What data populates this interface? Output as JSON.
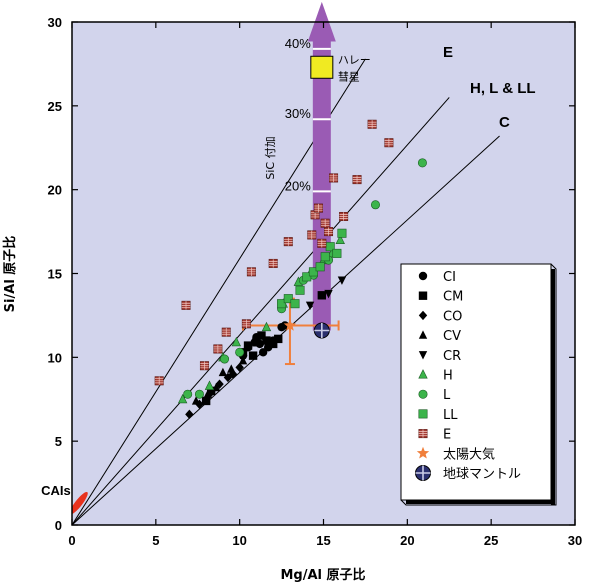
{
  "chart_data": {
    "type": "scatter",
    "xlabel": "Mg/Al 原子比",
    "ylabel": "Si/Al 原子比",
    "xlim": [
      0,
      30
    ],
    "ylim": [
      0,
      30
    ],
    "x_ticks": [
      0,
      5,
      10,
      15,
      20,
      25,
      30
    ],
    "y_ticks": [
      0,
      5,
      10,
      15,
      20,
      25,
      30
    ],
    "background_color": "#d2d4ec",
    "lines": [
      {
        "name": "E",
        "x": [
          0,
          17.5
        ],
        "y": [
          0,
          27.8
        ]
      },
      {
        "name": "H, L & LL",
        "x": [
          0,
          22.5
        ],
        "y": [
          0,
          25.5
        ]
      },
      {
        "name": "C",
        "x": [
          0,
          25.5
        ],
        "y": [
          0,
          23.2
        ]
      }
    ],
    "series": [
      {
        "name": "CI",
        "marker": "circle",
        "color": "#000000",
        "x": [
          10.2,
          10.5,
          10.9,
          11.0,
          11.4,
          11.7,
          12.0,
          11.2,
          12.5,
          12.7
        ],
        "y": [
          10.1,
          10.6,
          10.9,
          11.2,
          10.3,
          10.6,
          11.0,
          10.8,
          11.8,
          11.9
        ]
      },
      {
        "name": "CM",
        "marker": "square",
        "color": "#000000",
        "x": [
          8.0,
          8.3,
          10.2,
          10.5,
          10.8,
          11.0,
          11.3,
          11.6,
          12.0,
          12.3,
          14.9
        ],
        "y": [
          7.4,
          8.0,
          10.3,
          10.7,
          10.1,
          10.9,
          11.3,
          11.0,
          10.8,
          11.1,
          13.7
        ]
      },
      {
        "name": "CO",
        "marker": "diamond",
        "color": "#000000",
        "x": [
          7.0,
          7.6,
          8.2,
          8.8,
          9.3,
          9.6,
          10.0
        ],
        "y": [
          6.6,
          7.2,
          7.8,
          8.4,
          8.8,
          9.0,
          9.4
        ]
      },
      {
        "name": "CV",
        "marker": "triangle-up",
        "color": "#000000",
        "x": [
          7.4,
          8.1,
          8.6,
          9.0,
          9.5,
          10.2
        ],
        "y": [
          7.4,
          7.8,
          8.2,
          9.1,
          9.3,
          9.8
        ]
      },
      {
        "name": "CR",
        "marker": "triangle-down",
        "color": "#000000",
        "x": [
          14.2,
          15.3,
          16.1
        ],
        "y": [
          13.1,
          13.8,
          14.6
        ]
      },
      {
        "name": "H",
        "marker": "triangle-up",
        "color": "#3cb44b",
        "x": [
          6.6,
          8.2,
          9.0,
          9.8,
          11.6,
          12.6,
          13.5,
          14.2,
          15.0,
          15.5,
          16.0
        ],
        "y": [
          7.5,
          8.3,
          10.0,
          10.9,
          11.8,
          13.2,
          14.5,
          15.0,
          15.8,
          16.2,
          17.0
        ]
      },
      {
        "name": "L",
        "marker": "circle",
        "color": "#3cb44b",
        "x": [
          6.9,
          7.6,
          9.1,
          10.0,
          12.5,
          13.8,
          14.4,
          15.3,
          18.1,
          20.9
        ],
        "y": [
          7.8,
          7.8,
          9.9,
          10.3,
          12.9,
          14.6,
          14.9,
          15.8,
          19.1,
          21.6
        ]
      },
      {
        "name": "LL",
        "marker": "square",
        "color": "#3cb44b",
        "x": [
          12.5,
          12.9,
          13.3,
          13.6,
          14.0,
          14.4,
          14.8,
          15.1,
          15.4,
          15.8,
          16.1
        ],
        "y": [
          13.2,
          13.5,
          13.2,
          14.0,
          14.8,
          15.1,
          15.4,
          16.0,
          16.6,
          16.2,
          17.4
        ]
      },
      {
        "name": "E",
        "marker": "square-cross",
        "color": "#a33a32",
        "x": [
          5.2,
          6.8,
          7.9,
          8.7,
          9.2,
          10.4,
          10.7,
          12.0,
          12.9,
          14.3,
          14.5,
          14.7,
          14.9,
          15.1,
          15.3,
          15.6,
          16.2,
          17.0,
          17.9,
          18.9
        ],
        "y": [
          8.6,
          13.1,
          9.5,
          10.5,
          11.5,
          12.0,
          15.1,
          15.6,
          16.9,
          17.3,
          18.5,
          18.9,
          16.8,
          18.0,
          17.5,
          20.7,
          18.4,
          20.6,
          23.9,
          22.8
        ]
      }
    ],
    "special_points": [
      {
        "name": "太陽大気",
        "marker": "star",
        "color": "#f07f3c",
        "x": 13.0,
        "y": 11.9,
        "x_err": [
          10.2,
          15.9
        ],
        "y_err": [
          9.6,
          13.5
        ]
      },
      {
        "name": "地球マントル",
        "marker": "circle-plus",
        "color": "#2a2f6e",
        "x": 14.9,
        "y": 11.6
      },
      {
        "name": "ハレー 彗星",
        "marker": "square",
        "color": "#f0ea22",
        "x": 14.9,
        "y": 27.3
      }
    ],
    "sic_arrow": {
      "label": "SiC 付加",
      "x": 14.9,
      "y_start": 11.6,
      "y_end": 31.0,
      "color": "#9a5bb4",
      "ticks": [
        {
          "label": "20%",
          "y": 19.9
        },
        {
          "label": "30%",
          "y": 24.2
        },
        {
          "label": "40%",
          "y": 28.4
        }
      ]
    },
    "annotations": [
      {
        "text": "CAIs",
        "x": 0.4,
        "y": 1.3
      }
    ],
    "legend_placement": "right",
    "grid": false
  }
}
